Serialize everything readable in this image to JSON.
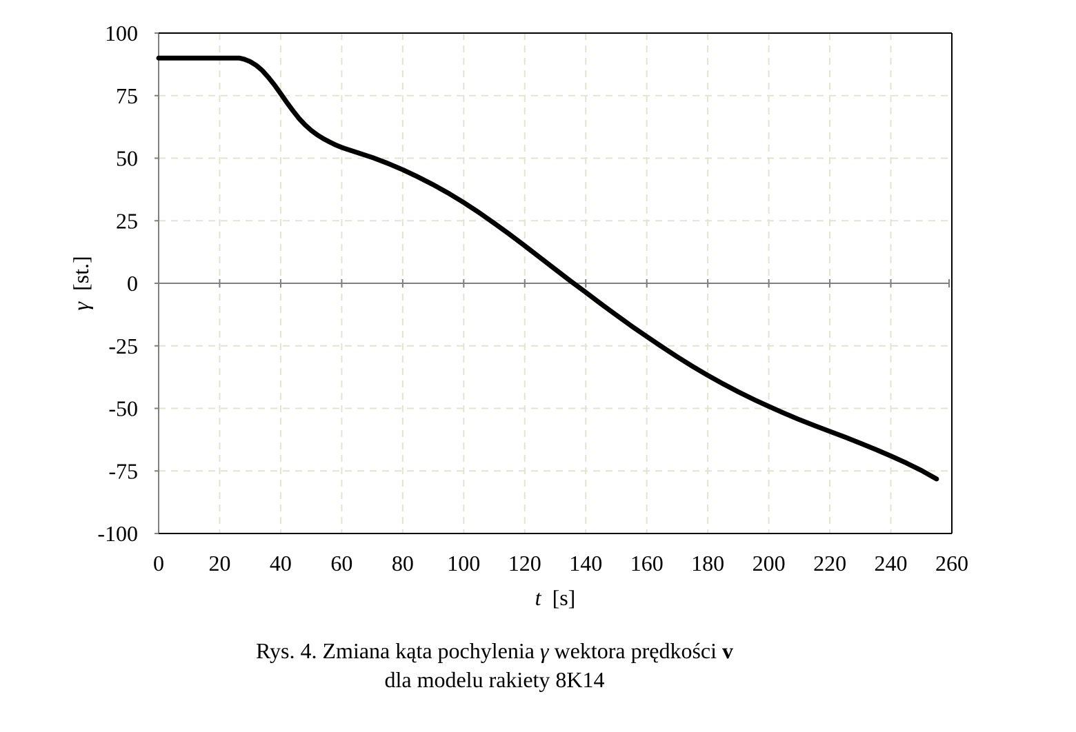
{
  "chart_data": {
    "type": "line",
    "xlabel_var": "t",
    "xlabel_unit": "[s]",
    "ylabel_var": "γ",
    "ylabel_unit": "[st.]",
    "xlim": [
      0,
      260
    ],
    "ylim": [
      -100,
      100
    ],
    "x_ticks": [
      0,
      20,
      40,
      60,
      80,
      100,
      120,
      140,
      160,
      180,
      200,
      220,
      240,
      260
    ],
    "y_ticks": [
      100,
      75,
      50,
      25,
      0,
      -25,
      -50,
      -75,
      -100
    ],
    "grid": true,
    "series": [
      {
        "line_color": "#000000",
        "points": [
          [
            0,
            90
          ],
          [
            5,
            90
          ],
          [
            10,
            90
          ],
          [
            15,
            90
          ],
          [
            20,
            90
          ],
          [
            25,
            90
          ],
          [
            26.5,
            90
          ],
          [
            28,
            89.6
          ],
          [
            30,
            88.6
          ],
          [
            32,
            87.1
          ],
          [
            34,
            85
          ],
          [
            36,
            82.3
          ],
          [
            38,
            79.2
          ],
          [
            40,
            75.8
          ],
          [
            42,
            72.3
          ],
          [
            44,
            69
          ],
          [
            46,
            65.9
          ],
          [
            48,
            63.3
          ],
          [
            50,
            61.1
          ],
          [
            52,
            59.3
          ],
          [
            54,
            57.8
          ],
          [
            56,
            56.5
          ],
          [
            58,
            55.3
          ],
          [
            60,
            54.3
          ],
          [
            65,
            52.3
          ],
          [
            70,
            50.3
          ],
          [
            75,
            48
          ],
          [
            80,
            45.4
          ],
          [
            85,
            42.5
          ],
          [
            90,
            39.4
          ],
          [
            95,
            36
          ],
          [
            100,
            32.3
          ],
          [
            105,
            28.3
          ],
          [
            110,
            24
          ],
          [
            115,
            19.6
          ],
          [
            120,
            15
          ],
          [
            125,
            10.3
          ],
          [
            130,
            5.6
          ],
          [
            135,
            0.9
          ],
          [
            140,
            -3.6
          ],
          [
            145,
            -8.2
          ],
          [
            150,
            -12.7
          ],
          [
            155,
            -17.1
          ],
          [
            160,
            -21.3
          ],
          [
            165,
            -25.4
          ],
          [
            170,
            -29.4
          ],
          [
            175,
            -33.2
          ],
          [
            180,
            -36.8
          ],
          [
            185,
            -40.2
          ],
          [
            190,
            -43.4
          ],
          [
            195,
            -46.4
          ],
          [
            200,
            -49.2
          ],
          [
            205,
            -51.9
          ],
          [
            210,
            -54.5
          ],
          [
            215,
            -56.9
          ],
          [
            220,
            -59.2
          ],
          [
            225,
            -61.5
          ],
          [
            230,
            -63.9
          ],
          [
            235,
            -66.4
          ],
          [
            240,
            -69
          ],
          [
            245,
            -71.8
          ],
          [
            250,
            -74.8
          ],
          [
            255,
            -78.2
          ]
        ]
      }
    ]
  },
  "caption": {
    "line1_prefix": "Rys. 4. Zmiana kąta pochylenia ",
    "line1_symbol": "γ",
    "line1_mid": " wektora prędkości ",
    "line1_vector": "v",
    "line2": "dla modelu rakiety 8K14"
  },
  "colors": {
    "grid": "#e3e3d2",
    "axis_zero": "#7f7f7f",
    "frame": "#000000",
    "line": "#000000"
  }
}
